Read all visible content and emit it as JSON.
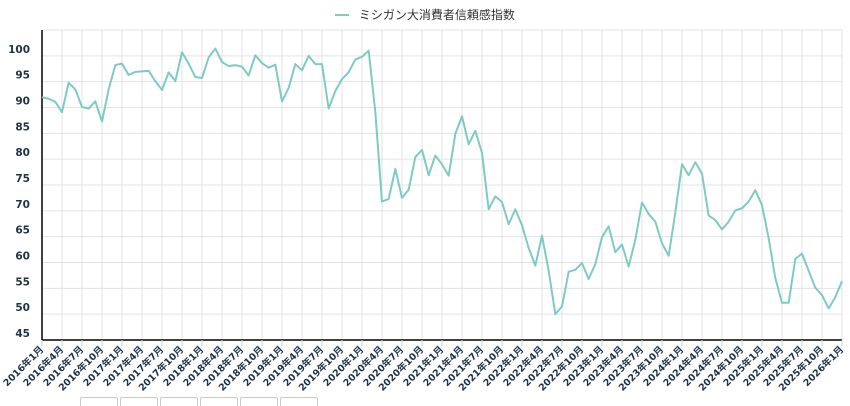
{
  "chart_data": {
    "type": "line",
    "title": "",
    "xlabel": "",
    "ylabel": "",
    "ylim": [
      45,
      105
    ],
    "yticks": [
      45,
      50,
      55,
      60,
      65,
      70,
      75,
      80,
      85,
      90,
      95,
      100
    ],
    "grid": true,
    "legend_position": "top-center",
    "x_tick_labels": [
      "2016年1月",
      "2016年4月",
      "2016年7月",
      "2016年10月",
      "2017年1月",
      "2017年4月",
      "2017年7月",
      "2017年10月",
      "2018年1月",
      "2018年4月",
      "2018年7月",
      "2018年10月",
      "2019年1月",
      "2019年4月",
      "2019年7月",
      "2019年10月",
      "2020年1月",
      "2020年4月",
      "2020年7月",
      "2020年10月",
      "2021年1月",
      "2021年4月",
      "2021年7月",
      "2021年10月",
      "2022年1月",
      "2022年4月",
      "2022年7月",
      "2022年10月",
      "2023年1月",
      "2023年4月",
      "2023年7月",
      "2023年10月",
      "2024年1月",
      "2024年4月",
      "2024年7月",
      "2024年10月",
      "2025年1月",
      "2025年4月",
      "2025年7月",
      "2025年10月",
      "2026年1月"
    ],
    "x_start": "2016年1月",
    "x_end": "2026年1月",
    "x_frequency": "monthly",
    "series": [
      {
        "name": "ミシガン大消費者信頼感指数",
        "color": "#7ecbc4",
        "values": [
          92.0,
          91.7,
          91.1,
          89.1,
          94.8,
          93.5,
          90.1,
          89.8,
          91.2,
          87.3,
          93.5,
          98.2,
          98.5,
          96.3,
          96.9,
          97.0,
          97.1,
          95.1,
          93.4,
          96.8,
          95.1,
          100.7,
          98.5,
          95.9,
          95.7,
          99.7,
          101.4,
          98.8,
          98.0,
          98.2,
          97.9,
          96.2,
          100.1,
          98.6,
          97.7,
          98.3,
          91.2,
          93.8,
          98.4,
          97.2,
          100.0,
          98.4,
          98.4,
          89.8,
          93.2,
          95.5,
          96.8,
          99.3,
          99.8,
          101.0,
          89.1,
          71.8,
          72.3,
          78.1,
          72.5,
          74.1,
          80.4,
          81.8,
          76.9,
          80.7,
          79.0,
          76.8,
          84.9,
          88.3,
          82.9,
          85.5,
          81.2,
          70.3,
          72.8,
          71.7,
          67.4,
          70.3,
          67.2,
          62.8,
          59.4,
          65.2,
          58.4,
          50.0,
          51.5,
          58.2,
          58.6,
          59.9,
          56.8,
          59.7,
          64.9,
          67.0,
          62.0,
          63.5,
          59.2,
          64.4,
          71.6,
          69.4,
          67.9,
          63.7,
          61.3,
          69.7,
          79.0,
          76.9,
          79.4,
          77.2,
          69.1,
          68.2,
          66.4,
          67.9,
          70.1,
          70.5,
          71.8,
          74.0,
          71.1,
          64.7,
          57.0,
          52.2,
          52.2,
          60.7,
          61.7,
          58.4,
          55.1,
          53.7,
          51.1,
          53.3,
          56.4
        ]
      }
    ]
  },
  "legend": {
    "label": "ミシガン大消費者信頼感指数",
    "color": "#7ecbc4"
  },
  "bottom_tabs": [
    {},
    {},
    {},
    {},
    {},
    {}
  ]
}
